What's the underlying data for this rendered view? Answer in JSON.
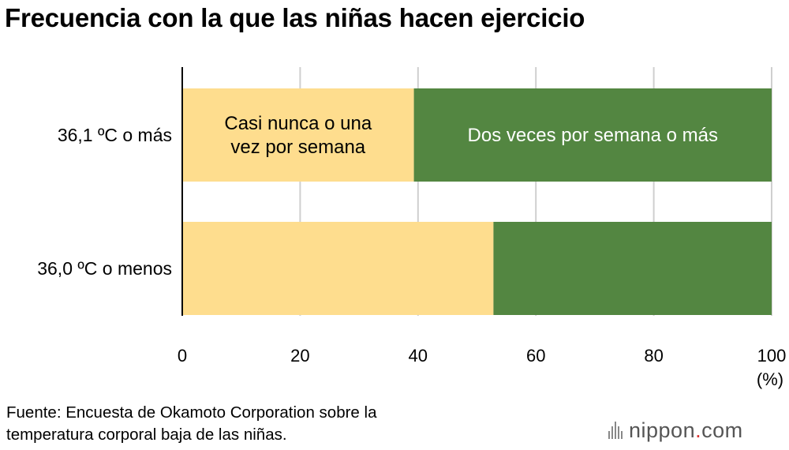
{
  "title": "Frecuencia con la que las niñas hacen ejercicio",
  "source": [
    "Fuente: Encuesta de Okamoto Corporation sobre la",
    "temperatura corporal baja de las niñas."
  ],
  "logo": {
    "name": "nippon",
    "dot": ".",
    "tld": "com"
  },
  "chart_data": {
    "type": "bar",
    "orientation": "horizontal",
    "stacked": true,
    "categories": [
      "36,1 ºC o más",
      "36,0 ºC o menos"
    ],
    "series": [
      {
        "name": "Casi nunca o una vez por semana",
        "label_lines": [
          "Casi nunca o una",
          "vez por semana"
        ],
        "color": "#fedd8e",
        "values": [
          39.3,
          52.8
        ]
      },
      {
        "name": "Dos veces por semana o más",
        "label_lines": [
          "Dos veces por semana o más"
        ],
        "color": "#538641",
        "values": [
          60.7,
          47.2
        ]
      }
    ],
    "xlim": [
      0,
      100
    ],
    "xticks": [
      0,
      20,
      40,
      60,
      80,
      100
    ],
    "xunit": "(%)",
    "grid": true
  }
}
